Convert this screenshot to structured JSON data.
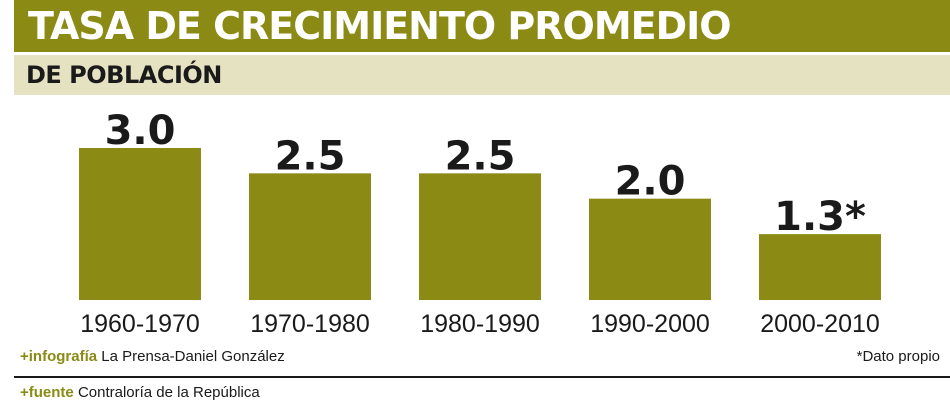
{
  "header": {
    "title": "TASA DE CRECIMIENTO PROMEDIO",
    "subtitle": "DE POBLACIÓN"
  },
  "colors": {
    "accent": "#8a8a14",
    "subtitle_bg": "#e5e2c2",
    "text": "#1a1a1a"
  },
  "chart_data": {
    "type": "bar",
    "title": "TASA DE CRECIMIENTO PROMEDIO DE POBLACIÓN",
    "categories": [
      "1960-1970",
      "1970-1980",
      "1980-1990",
      "1990-2000",
      "2000-2010"
    ],
    "values": [
      3.0,
      2.5,
      2.5,
      2.0,
      1.3
    ],
    "data_labels": [
      "3.0",
      "2.5",
      "2.5",
      "2.0",
      "1.3*"
    ],
    "xlabel": "",
    "ylabel": "",
    "ylim": [
      0,
      3.0
    ],
    "grid": false,
    "legend": "none"
  },
  "footer": {
    "infografia_prefix": "+",
    "infografia_key": "infografía",
    "infografia_value": "La Prensa-Daniel González",
    "note": "*Dato propio",
    "fuente_prefix": "+",
    "fuente_key": "fuente",
    "fuente_value": "Contraloría de la República"
  }
}
